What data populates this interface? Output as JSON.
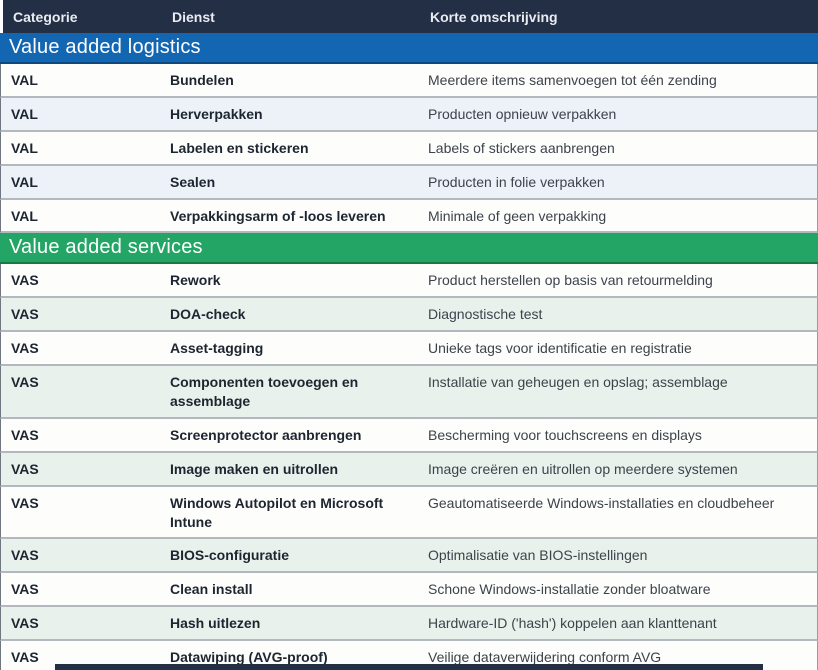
{
  "header": {
    "columns": [
      {
        "label": "Categorie"
      },
      {
        "label": "Dienst"
      },
      {
        "label": "Korte omschrijving"
      }
    ]
  },
  "sections": [
    {
      "title": "Value added logistics",
      "accent": "#1366b1",
      "tint": "#edf2f8",
      "rows": [
        {
          "categorie": "VAL",
          "dienst": "Bundelen",
          "omschrijving": "Meerdere items samenvoegen tot één zending"
        },
        {
          "categorie": "VAL",
          "dienst": "Herverpakken",
          "omschrijving": "Producten opnieuw verpakken"
        },
        {
          "categorie": "VAL",
          "dienst": "Labelen en stickeren",
          "omschrijving": "Labels of stickers aanbrengen"
        },
        {
          "categorie": "VAL",
          "dienst": "Sealen",
          "omschrijving": "Producten in folie verpakken"
        },
        {
          "categorie": "VAL",
          "dienst": "Verpakkingsarm of -loos leveren",
          "omschrijving": "Minimale of geen verpakking"
        }
      ]
    },
    {
      "title": "Value added services",
      "accent": "#23a566",
      "tint": "#e9f1ec",
      "rows": [
        {
          "categorie": "VAS",
          "dienst": "Rework",
          "omschrijving": "Product herstellen op basis van retourmelding"
        },
        {
          "categorie": "VAS",
          "dienst": "DOA-check",
          "omschrijving": "Diagnostische test"
        },
        {
          "categorie": "VAS",
          "dienst": "Asset-tagging",
          "omschrijving": "Unieke tags voor identificatie en registratie"
        },
        {
          "categorie": "VAS",
          "dienst": "Componenten toevoegen en assemblage",
          "omschrijving": "Installatie van geheugen en opslag; assemblage"
        },
        {
          "categorie": "VAS",
          "dienst": "Screenprotector aanbrengen",
          "omschrijving": "Bescherming voor touchscreens en displays"
        },
        {
          "categorie": "VAS",
          "dienst": "Image maken en uitrollen",
          "omschrijving": "Image creëren en uitrollen op meerdere systemen"
        },
        {
          "categorie": "VAS",
          "dienst": "Windows Autopilot en Microsoft Intune",
          "omschrijving": "Geautomatiseerde Windows-installaties en cloudbeheer"
        },
        {
          "categorie": "VAS",
          "dienst": "BIOS-configuratie",
          "omschrijving": "Optimalisatie van BIOS-instellingen"
        },
        {
          "categorie": "VAS",
          "dienst": "Clean install",
          "omschrijving": "Schone Windows-installatie zonder bloatware"
        },
        {
          "categorie": "VAS",
          "dienst": "Hash uitlezen",
          "omschrijving": "Hardware-ID ('hash') koppelen aan klanttenant"
        },
        {
          "categorie": "VAS",
          "dienst": "Datawiping (AVG-proof)",
          "omschrijving": "Veilige dataverwijdering conform AVG"
        }
      ]
    }
  ],
  "colors": {
    "header_bg": "#232f45",
    "header_text": "#e9ecf1",
    "section_text": "#ffffff",
    "row_text": "#1d2530",
    "desc_text": "#3d434b"
  }
}
